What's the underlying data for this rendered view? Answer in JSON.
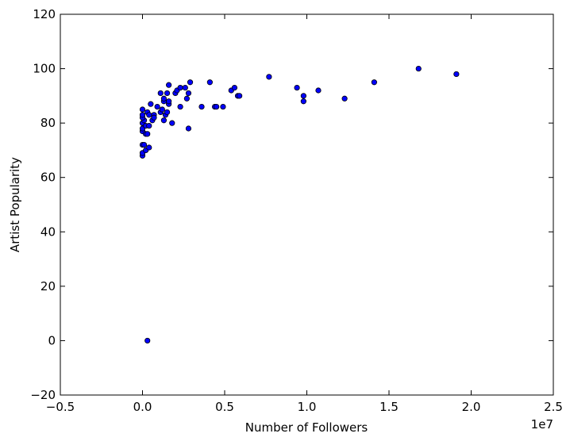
{
  "chart_data": {
    "type": "scatter",
    "xlabel": "Number of Followers",
    "ylabel": "Artist Popularity",
    "x_offset_text": "1e7",
    "xlim": [
      -0.5,
      2.5
    ],
    "ylim": [
      -20,
      120
    ],
    "xticks": [
      {
        "value": -0.5,
        "label": "−0.5"
      },
      {
        "value": 0,
        "label": "0.0"
      },
      0.5,
      {
        "value": 1,
        "label": "1.0"
      },
      1.5,
      {
        "value": 2,
        "label": "2.0"
      },
      2.5
    ],
    "yticks": [
      {
        "value": -20,
        "label": "−20"
      },
      0,
      20,
      40,
      60,
      80,
      100,
      120
    ],
    "grid": false,
    "series": [
      {
        "color": "#0000ff",
        "x": [
          0.0,
          0.0,
          0.0,
          0.01,
          0.02,
          0.04,
          0.0,
          0.0,
          0.0,
          0.01,
          0.0,
          0.0,
          0.0,
          0.02,
          0.02,
          0.03,
          0.03,
          0.04,
          0.04,
          0.05,
          0.06,
          0.07,
          0.07,
          0.09,
          0.11,
          0.11,
          0.12,
          0.13,
          0.13,
          0.13,
          0.14,
          0.15,
          0.15,
          0.16,
          0.16,
          0.16,
          0.18,
          0.2,
          0.21,
          0.23,
          0.23,
          0.26,
          0.27,
          0.28,
          0.28,
          0.29,
          0.36,
          0.41,
          0.44,
          0.45,
          0.49,
          0.54,
          0.56,
          0.58,
          0.59,
          0.77,
          0.94,
          0.98,
          0.98,
          1.07,
          1.23,
          1.41,
          1.68,
          1.91,
          0.03
        ],
        "values": [
          68,
          69,
          72,
          72,
          70,
          71,
          77,
          78,
          80,
          81,
          82,
          83,
          85,
          79,
          76,
          76,
          84,
          83,
          79,
          87,
          81,
          83,
          82,
          86,
          91,
          84,
          85,
          88,
          81,
          89,
          83,
          91,
          84,
          94,
          87,
          88,
          80,
          91,
          92,
          93,
          86,
          93,
          89,
          91,
          78,
          95,
          86,
          95,
          86,
          86,
          86,
          92,
          93,
          90,
          90,
          97,
          93,
          90,
          88,
          92,
          89,
          95,
          100,
          98,
          0
        ]
      }
    ]
  }
}
